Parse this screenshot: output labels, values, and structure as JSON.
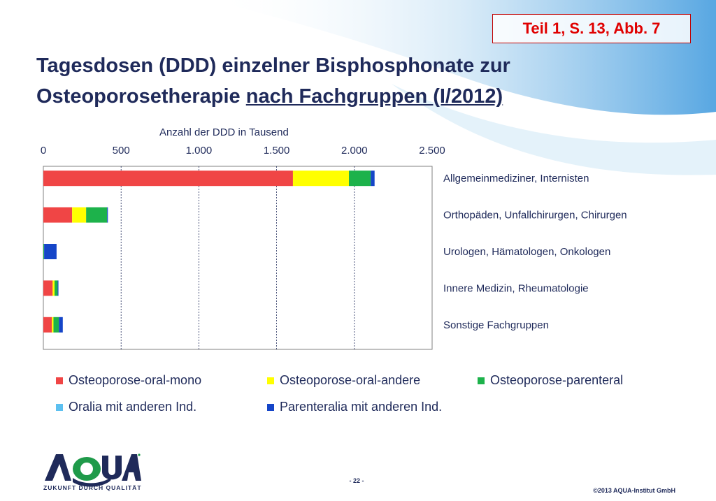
{
  "slide": {
    "reference": "Teil 1, S. 13, Abb. 7",
    "title_line1": "Tagesdosen (DDD) einzelner Bisphosphonate zur",
    "title_line2_plain": "Osteoporosetherapie ",
    "title_line2_underlined": "nach Fachgruppen (I/2012)",
    "page_number": "- 22 -",
    "copyright": "©2013 AQUA-Institut GmbH",
    "logo_text": "AQUA",
    "logo_tagline": "ZUKUNFT DURCH QUALITÄT"
  },
  "colors": {
    "title": "#1f2a5a",
    "reference": "#e00000",
    "osteo_oral_mono": "#f04545",
    "osteo_oral_andere": "#ffff00",
    "osteo_parenteral": "#1db24b",
    "oralia_andere": "#5cc0f0",
    "parenteralia_andere": "#1545c8",
    "logo_green": "#1f9a4a",
    "logo_navy": "#1f2a5a"
  },
  "chart_data": {
    "type": "bar",
    "orientation": "horizontal",
    "stacked": true,
    "xlabel": "Anzahl der DDD in Tausend",
    "xlim": [
      0,
      2500
    ],
    "x_ticks": [
      "0",
      "500",
      "1.000",
      "1.500",
      "2.000",
      "2.500"
    ],
    "x_tick_values": [
      0,
      500,
      1000,
      1500,
      2000,
      2500
    ],
    "grid": true,
    "legend_position": "bottom",
    "categories": [
      "Allgemeinmediziner, Internisten",
      "Orthopäden, Unfallchirurgen, Chirurgen",
      "Urologen, Hämatologen, Onkologen",
      "Innere Medizin, Rheumatologie",
      "Sonstige Fachgruppen"
    ],
    "series": [
      {
        "name": "Osteoporose-oral-mono",
        "color": "#f04545",
        "values": [
          1605,
          185,
          0,
          60,
          55
        ]
      },
      {
        "name": "Osteoporose-oral-andere",
        "color": "#ffff00",
        "values": [
          360,
          90,
          0,
          12,
          10
        ]
      },
      {
        "name": "Osteoporose-parenteral",
        "color": "#1db24b",
        "values": [
          140,
          135,
          5,
          20,
          35
        ]
      },
      {
        "name": "Oralia mit anderen Ind.",
        "color": "#5cc0f0",
        "values": [
          0,
          0,
          0,
          0,
          0
        ]
      },
      {
        "name": "Parenteralia mit anderen Ind.",
        "color": "#1545c8",
        "values": [
          25,
          5,
          80,
          5,
          25
        ]
      }
    ]
  }
}
